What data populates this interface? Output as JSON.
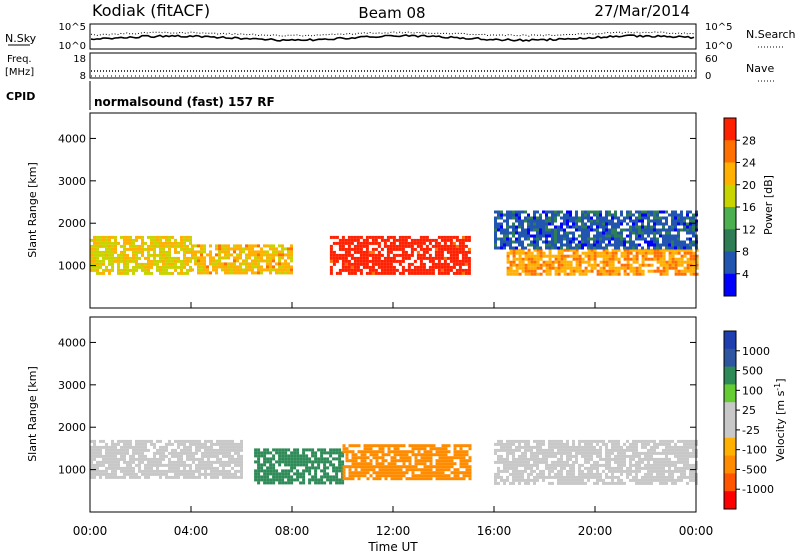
{
  "header": {
    "station": "Kodiak (fitACF)",
    "beam": "Beam 08",
    "date": "27/Mar/2014"
  },
  "noise_panel": {
    "left_label": "N.Sky",
    "left_ticks": [
      "10^5",
      "10^0"
    ],
    "right_label": "N.Search",
    "right_ticks": [
      "10^5",
      "10^0"
    ]
  },
  "freq_panel": {
    "left_label_1": "Freq.",
    "left_label_2": "[MHz]",
    "left_ticks": [
      "18",
      "8"
    ],
    "right_label": "Nave",
    "right_ticks": [
      "60",
      "0"
    ]
  },
  "cpid_panel": {
    "label": "CPID",
    "text": "normalsound (fast) 157 RF"
  },
  "colors": {
    "power_scale": [
      "#0000ff",
      "#2255b0",
      "#2e7d55",
      "#4caf50",
      "#c8d400",
      "#ffb000",
      "#ff7000",
      "#ff2000"
    ],
    "velocity_scale": [
      "#ff0000",
      "#ff5500",
      "#ff8c00",
      "#ffb000",
      "#c8c8c8",
      "#c8c8c8",
      "#66cc33",
      "#2e8b57",
      "#2e55a0",
      "#1f3fb0"
    ]
  },
  "chart_data": [
    {
      "type": "heatmap",
      "title": "",
      "xlabel": "",
      "ylabel": "Slant Range [km]",
      "y_ticks": [
        "1000",
        "2000",
        "3000",
        "4000"
      ],
      "ylim": [
        0,
        4600
      ],
      "xlim": [
        "00:00",
        "24:00"
      ],
      "colorbar": {
        "label": "Power [dB]",
        "ticks": [
          "28",
          "24",
          "20",
          "16",
          "12",
          "8",
          "4"
        ],
        "range": [
          0,
          30
        ]
      },
      "regions": [
        {
          "x_start": 0.0,
          "x_end": 4.0,
          "y_start": 800,
          "y_end": 1700,
          "value": 18
        },
        {
          "x_start": 4.0,
          "x_end": 8.0,
          "y_start": 800,
          "y_end": 1500,
          "value": 20
        },
        {
          "x_start": 9.5,
          "x_end": 15.0,
          "y_start": 800,
          "y_end": 1700,
          "value": 29
        },
        {
          "x_start": 16.5,
          "x_end": 24.0,
          "y_start": 800,
          "y_end": 1400,
          "value": 22
        },
        {
          "x_start": 16.0,
          "x_end": 24.0,
          "y_start": 1400,
          "y_end": 2300,
          "value": 6
        }
      ]
    },
    {
      "type": "heatmap",
      "title": "",
      "xlabel": "Time UT",
      "ylabel": "Slant Range [km]",
      "x_ticks": [
        "00:00",
        "04:00",
        "08:00",
        "12:00",
        "16:00",
        "20:00",
        "00:00"
      ],
      "y_ticks": [
        "1000",
        "2000",
        "3000",
        "4000"
      ],
      "ylim": [
        0,
        4600
      ],
      "xlim": [
        "00:00",
        "24:00"
      ],
      "colorbar": {
        "label": "Velocity [m s-1]",
        "ticks": [
          "1000",
          "500",
          "100",
          "25",
          "-25",
          "-100",
          "-500",
          "-1000"
        ],
        "range": [
          -1000,
          1000
        ]
      },
      "regions": [
        {
          "x_start": 0.0,
          "x_end": 6.0,
          "y_start": 800,
          "y_end": 1700,
          "value": 0
        },
        {
          "x_start": 6.5,
          "x_end": 10.0,
          "y_start": 700,
          "y_end": 1500,
          "value": 150
        },
        {
          "x_start": 10.0,
          "x_end": 15.0,
          "y_start": 800,
          "y_end": 1600,
          "value": -250
        },
        {
          "x_start": 16.0,
          "x_end": 24.0,
          "y_start": 700,
          "y_end": 1700,
          "value": 0
        }
      ]
    }
  ],
  "units": {
    "velocity_unit_main": "Velocity [m s",
    "velocity_unit_sup": "-1",
    "velocity_unit_close": "]"
  }
}
